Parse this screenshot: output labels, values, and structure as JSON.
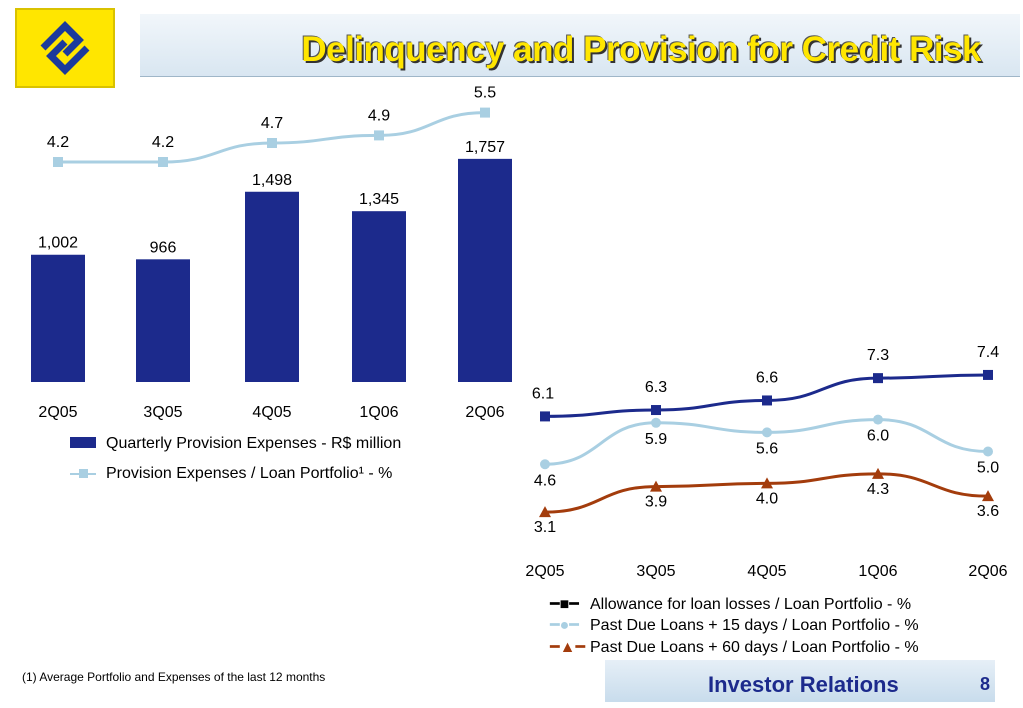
{
  "header": {
    "title": "Delinquency and Provision for Credit Risk"
  },
  "footer": {
    "note": "(1) Average Portfolio and Expenses of the last 12 months",
    "brand": "Investor Relations",
    "page": "8"
  },
  "colors": {
    "bar": "#1c2a8c",
    "line_light": "#a9cfe2",
    "allowance": "#1c2a8c",
    "past15": "#a9cfe2",
    "past60": "#a33c0c",
    "title": "#ffe600"
  },
  "chart_data": [
    {
      "type": "bar+line",
      "categories": [
        "2Q05",
        "3Q05",
        "4Q05",
        "1Q06",
        "2Q06"
      ],
      "series": [
        {
          "name": "Quarterly Provision Expenses - R$ million",
          "kind": "bar",
          "values": [
            1002,
            966,
            1498,
            1345,
            1757
          ],
          "labels": [
            "1,002",
            "966",
            "1,498",
            "1,345",
            "1,757"
          ]
        },
        {
          "name": "Provision Expenses / Loan Portfolio¹ - %",
          "kind": "line",
          "marker": "square",
          "values": [
            4.2,
            4.2,
            4.7,
            4.9,
            5.5
          ],
          "labels": [
            "4.2",
            "4.2",
            "4.7",
            "4.9",
            "5.5"
          ]
        }
      ],
      "legend": "bottom"
    },
    {
      "type": "line",
      "categories": [
        "2Q05",
        "3Q05",
        "4Q05",
        "1Q06",
        "2Q06"
      ],
      "series": [
        {
          "name": "Allowance for loan losses / Loan Portfolio - %",
          "marker": "square",
          "values": [
            6.1,
            6.3,
            6.6,
            7.3,
            7.4
          ],
          "labels": [
            "6.1",
            "6.3",
            "6.6",
            "7.3",
            "7.4"
          ]
        },
        {
          "name": "Past Due Loans + 15 days / Loan Portfolio - %",
          "marker": "circle",
          "values": [
            4.6,
            5.9,
            5.6,
            6.0,
            5.0
          ],
          "labels": [
            "4.6",
            "5.9",
            "5.6",
            "6.0",
            "5.0"
          ]
        },
        {
          "name": "Past Due Loans + 60 days / Loan Portfolio - %",
          "marker": "triangle",
          "values": [
            3.1,
            3.9,
            4.0,
            4.3,
            3.6
          ],
          "labels": [
            "3.1",
            "3.9",
            "4.0",
            "4.3",
            "3.6"
          ]
        }
      ],
      "legend": "bottom"
    }
  ]
}
